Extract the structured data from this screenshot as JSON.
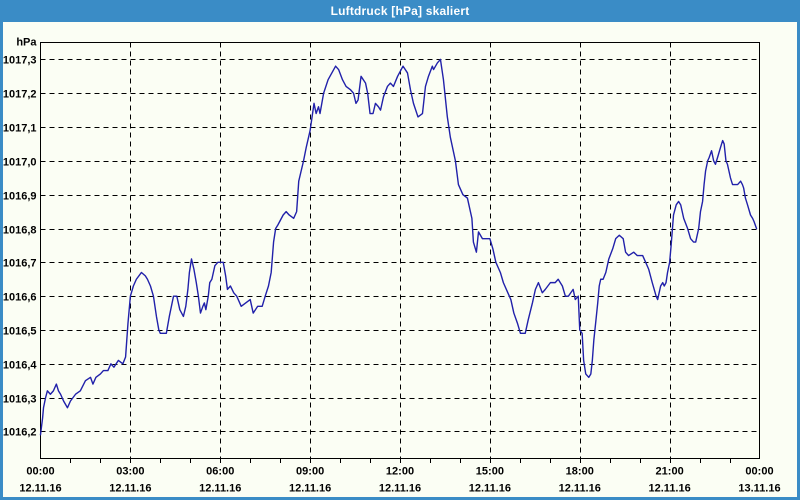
{
  "window": {
    "title": "Luftdruck [hPa] skaliert"
  },
  "colors": {
    "titlebar_bg": "#3a8cc6",
    "titlebar_text": "#ffffff",
    "window_bg": "#fbfef4",
    "border": "#3a8cc6",
    "grid": "#000000",
    "axis": "#000000",
    "label": "#000000",
    "line": "#2121aa"
  },
  "chart_data": {
    "type": "line",
    "title": "Luftdruck [hPa] skaliert",
    "ylabel": "hPa",
    "xlabel": "",
    "grid": "dashed",
    "legend": "none",
    "ylim": [
      1016.12,
      1017.35
    ],
    "xlim_hours": [
      0,
      24
    ],
    "minor_tick_every_hours": 1,
    "y_ticks": [
      {
        "value": 1016.2,
        "label": "1016,2"
      },
      {
        "value": 1016.3,
        "label": "1016,3"
      },
      {
        "value": 1016.4,
        "label": "1016,4"
      },
      {
        "value": 1016.5,
        "label": "1016,5"
      },
      {
        "value": 1016.6,
        "label": "1016,6"
      },
      {
        "value": 1016.7,
        "label": "1016,7"
      },
      {
        "value": 1016.8,
        "label": "1016,8"
      },
      {
        "value": 1016.9,
        "label": "1016,9"
      },
      {
        "value": 1017.0,
        "label": "1017,0"
      },
      {
        "value": 1017.1,
        "label": "1017,1"
      },
      {
        "value": 1017.2,
        "label": "1017,2"
      },
      {
        "value": 1017.3,
        "label": "1017,3"
      }
    ],
    "x_ticks": [
      {
        "hour": 0,
        "time": "00:00",
        "date": "12.11.16"
      },
      {
        "hour": 3,
        "time": "03:00",
        "date": "12.11.16"
      },
      {
        "hour": 6,
        "time": "06:00",
        "date": "12.11.16"
      },
      {
        "hour": 9,
        "time": "09:00",
        "date": "12.11.16"
      },
      {
        "hour": 12,
        "time": "12:00",
        "date": "12.11.16"
      },
      {
        "hour": 15,
        "time": "15:00",
        "date": "12.11.16"
      },
      {
        "hour": 18,
        "time": "18:00",
        "date": "12.11.16"
      },
      {
        "hour": 21,
        "time": "21:00",
        "date": "12.11.16"
      },
      {
        "hour": 24,
        "time": "00:00",
        "date": "13.11.16"
      }
    ],
    "series": [
      {
        "name": "Luftdruck",
        "color": "#2121aa",
        "points": [
          [
            0.0,
            1016.19
          ],
          [
            0.07,
            1016.24
          ],
          [
            0.1,
            1016.27
          ],
          [
            0.17,
            1016.3
          ],
          [
            0.23,
            1016.32
          ],
          [
            0.33,
            1016.31
          ],
          [
            0.43,
            1016.32
          ],
          [
            0.53,
            1016.34
          ],
          [
            0.6,
            1016.32
          ],
          [
            0.67,
            1016.31
          ],
          [
            0.77,
            1016.29
          ],
          [
            0.9,
            1016.27
          ],
          [
            1.0,
            1016.29
          ],
          [
            1.17,
            1016.31
          ],
          [
            1.33,
            1016.32
          ],
          [
            1.5,
            1016.35
          ],
          [
            1.67,
            1016.36
          ],
          [
            1.75,
            1016.34
          ],
          [
            1.85,
            1016.36
          ],
          [
            2.0,
            1016.37
          ],
          [
            2.1,
            1016.38
          ],
          [
            2.25,
            1016.38
          ],
          [
            2.35,
            1016.4
          ],
          [
            2.45,
            1016.39
          ],
          [
            2.6,
            1016.41
          ],
          [
            2.75,
            1016.4
          ],
          [
            2.84,
            1016.42
          ],
          [
            2.92,
            1016.52
          ],
          [
            3.0,
            1016.6
          ],
          [
            3.1,
            1016.63
          ],
          [
            3.2,
            1016.65
          ],
          [
            3.37,
            1016.67
          ],
          [
            3.5,
            1016.66
          ],
          [
            3.57,
            1016.65
          ],
          [
            3.67,
            1016.63
          ],
          [
            3.77,
            1016.6
          ],
          [
            3.87,
            1016.54
          ],
          [
            3.95,
            1016.5
          ],
          [
            4.0,
            1016.49
          ],
          [
            4.2,
            1016.49
          ],
          [
            4.3,
            1016.54
          ],
          [
            4.44,
            1016.6
          ],
          [
            4.55,
            1016.6
          ],
          [
            4.65,
            1016.56
          ],
          [
            4.77,
            1016.54
          ],
          [
            4.85,
            1016.57
          ],
          [
            4.92,
            1016.62
          ],
          [
            4.97,
            1016.67
          ],
          [
            5.04,
            1016.71
          ],
          [
            5.12,
            1016.68
          ],
          [
            5.2,
            1016.64
          ],
          [
            5.27,
            1016.6
          ],
          [
            5.34,
            1016.55
          ],
          [
            5.42,
            1016.57
          ],
          [
            5.47,
            1016.58
          ],
          [
            5.52,
            1016.56
          ],
          [
            5.6,
            1016.6
          ],
          [
            5.65,
            1016.64
          ],
          [
            5.72,
            1016.65
          ],
          [
            5.82,
            1016.69
          ],
          [
            5.92,
            1016.7
          ],
          [
            6.1,
            1016.7
          ],
          [
            6.18,
            1016.66
          ],
          [
            6.24,
            1016.62
          ],
          [
            6.34,
            1016.63
          ],
          [
            6.45,
            1016.61
          ],
          [
            6.55,
            1016.6
          ],
          [
            6.7,
            1016.57
          ],
          [
            6.85,
            1016.58
          ],
          [
            7.0,
            1016.59
          ],
          [
            7.1,
            1016.55
          ],
          [
            7.25,
            1016.57
          ],
          [
            7.4,
            1016.57
          ],
          [
            7.5,
            1016.6
          ],
          [
            7.61,
            1016.63
          ],
          [
            7.7,
            1016.67
          ],
          [
            7.78,
            1016.76
          ],
          [
            7.85,
            1016.8
          ],
          [
            7.92,
            1016.81
          ],
          [
            8.1,
            1016.84
          ],
          [
            8.2,
            1016.85
          ],
          [
            8.3,
            1016.84
          ],
          [
            8.45,
            1016.83
          ],
          [
            8.55,
            1016.85
          ],
          [
            8.62,
            1016.94
          ],
          [
            8.7,
            1016.97
          ],
          [
            8.78,
            1017.0
          ],
          [
            8.87,
            1017.04
          ],
          [
            9.0,
            1017.09
          ],
          [
            9.13,
            1017.17
          ],
          [
            9.2,
            1017.14
          ],
          [
            9.28,
            1017.16
          ],
          [
            9.33,
            1017.14
          ],
          [
            9.45,
            1017.2
          ],
          [
            9.6,
            1017.24
          ],
          [
            9.85,
            1017.28
          ],
          [
            9.95,
            1017.27
          ],
          [
            10.08,
            1017.24
          ],
          [
            10.2,
            1017.22
          ],
          [
            10.35,
            1017.21
          ],
          [
            10.45,
            1017.2
          ],
          [
            10.53,
            1017.17
          ],
          [
            10.6,
            1017.18
          ],
          [
            10.7,
            1017.25
          ],
          [
            10.85,
            1017.23
          ],
          [
            10.92,
            1017.2
          ],
          [
            11.0,
            1017.14
          ],
          [
            11.1,
            1017.14
          ],
          [
            11.18,
            1017.17
          ],
          [
            11.28,
            1017.16
          ],
          [
            11.35,
            1017.15
          ],
          [
            11.45,
            1017.19
          ],
          [
            11.58,
            1017.22
          ],
          [
            11.68,
            1017.23
          ],
          [
            11.78,
            1017.22
          ],
          [
            11.92,
            1017.25
          ],
          [
            12.1,
            1017.28
          ],
          [
            12.25,
            1017.26
          ],
          [
            12.35,
            1017.21
          ],
          [
            12.45,
            1017.17
          ],
          [
            12.6,
            1017.13
          ],
          [
            12.75,
            1017.14
          ],
          [
            12.85,
            1017.22
          ],
          [
            12.95,
            1017.25
          ],
          [
            13.08,
            1017.28
          ],
          [
            13.12,
            1017.27
          ],
          [
            13.25,
            1017.29
          ],
          [
            13.35,
            1017.3
          ],
          [
            13.45,
            1017.24
          ],
          [
            13.58,
            1017.13
          ],
          [
            13.68,
            1017.07
          ],
          [
            13.85,
            1017.0
          ],
          [
            13.95,
            1016.93
          ],
          [
            14.1,
            1016.9
          ],
          [
            14.25,
            1016.89
          ],
          [
            14.4,
            1016.83
          ],
          [
            14.45,
            1016.76
          ],
          [
            14.55,
            1016.73
          ],
          [
            14.62,
            1016.79
          ],
          [
            14.75,
            1016.77
          ],
          [
            14.9,
            1016.77
          ],
          [
            15.0,
            1016.77
          ],
          [
            15.1,
            1016.74
          ],
          [
            15.2,
            1016.7
          ],
          [
            15.35,
            1016.67
          ],
          [
            15.45,
            1016.64
          ],
          [
            15.6,
            1016.61
          ],
          [
            15.7,
            1016.59
          ],
          [
            15.8,
            1016.55
          ],
          [
            15.92,
            1016.52
          ],
          [
            16.02,
            1016.49
          ],
          [
            16.18,
            1016.49
          ],
          [
            16.28,
            1016.53
          ],
          [
            16.42,
            1016.58
          ],
          [
            16.52,
            1016.62
          ],
          [
            16.62,
            1016.64
          ],
          [
            16.75,
            1016.61
          ],
          [
            16.85,
            1016.62
          ],
          [
            17.02,
            1016.64
          ],
          [
            17.18,
            1016.64
          ],
          [
            17.28,
            1016.65
          ],
          [
            17.42,
            1016.63
          ],
          [
            17.52,
            1016.6
          ],
          [
            17.62,
            1016.6
          ],
          [
            17.7,
            1016.61
          ],
          [
            17.78,
            1016.62
          ],
          [
            17.85,
            1016.59
          ],
          [
            17.95,
            1016.6
          ],
          [
            18.0,
            1016.5
          ],
          [
            18.08,
            1016.49
          ],
          [
            18.13,
            1016.41
          ],
          [
            18.2,
            1016.37
          ],
          [
            18.3,
            1016.36
          ],
          [
            18.37,
            1016.37
          ],
          [
            18.42,
            1016.41
          ],
          [
            18.47,
            1016.47
          ],
          [
            18.53,
            1016.52
          ],
          [
            18.6,
            1016.58
          ],
          [
            18.65,
            1016.63
          ],
          [
            18.7,
            1016.65
          ],
          [
            18.78,
            1016.65
          ],
          [
            18.87,
            1016.67
          ],
          [
            18.97,
            1016.71
          ],
          [
            19.1,
            1016.74
          ],
          [
            19.2,
            1016.77
          ],
          [
            19.32,
            1016.78
          ],
          [
            19.45,
            1016.77
          ],
          [
            19.53,
            1016.73
          ],
          [
            19.63,
            1016.72
          ],
          [
            19.8,
            1016.73
          ],
          [
            19.92,
            1016.72
          ],
          [
            20.1,
            1016.72
          ],
          [
            20.2,
            1016.7
          ],
          [
            20.3,
            1016.68
          ],
          [
            20.42,
            1016.64
          ],
          [
            20.55,
            1016.6
          ],
          [
            20.6,
            1016.59
          ],
          [
            20.7,
            1016.63
          ],
          [
            20.77,
            1016.64
          ],
          [
            20.82,
            1016.63
          ],
          [
            20.88,
            1016.64
          ],
          [
            20.93,
            1016.67
          ],
          [
            21.0,
            1016.7
          ],
          [
            21.05,
            1016.75
          ],
          [
            21.13,
            1016.84
          ],
          [
            21.22,
            1016.87
          ],
          [
            21.3,
            1016.88
          ],
          [
            21.37,
            1016.87
          ],
          [
            21.47,
            1016.83
          ],
          [
            21.6,
            1016.8
          ],
          [
            21.7,
            1016.77
          ],
          [
            21.8,
            1016.76
          ],
          [
            21.87,
            1016.76
          ],
          [
            21.97,
            1016.8
          ],
          [
            22.03,
            1016.85
          ],
          [
            22.1,
            1016.88
          ],
          [
            22.15,
            1016.93
          ],
          [
            22.2,
            1016.97
          ],
          [
            22.27,
            1017.0
          ],
          [
            22.32,
            1017.01
          ],
          [
            22.4,
            1017.03
          ],
          [
            22.47,
            1017.0
          ],
          [
            22.53,
            1016.99
          ],
          [
            22.6,
            1017.01
          ],
          [
            22.7,
            1017.04
          ],
          [
            22.77,
            1017.06
          ],
          [
            22.82,
            1017.05
          ],
          [
            22.88,
            1017.0
          ],
          [
            22.93,
            1016.99
          ],
          [
            23.03,
            1016.95
          ],
          [
            23.1,
            1016.93
          ],
          [
            23.27,
            1016.93
          ],
          [
            23.37,
            1016.94
          ],
          [
            23.43,
            1016.93
          ],
          [
            23.47,
            1016.92
          ],
          [
            23.53,
            1016.89
          ],
          [
            23.6,
            1016.87
          ],
          [
            23.7,
            1016.84
          ],
          [
            23.77,
            1016.83
          ],
          [
            23.82,
            1016.82
          ],
          [
            23.9,
            1016.8
          ]
        ]
      }
    ]
  }
}
